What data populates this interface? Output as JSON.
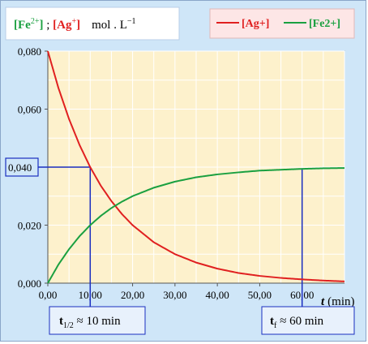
{
  "chart_data": {
    "type": "line",
    "title_parts": {
      "fe_symbol": "[Fe",
      "fe_charge": "2+",
      "fe_close": "]",
      "separator": " ; ",
      "ag_symbol": "[Ag",
      "ag_charge": "+",
      "ag_close": "]",
      "unit": "mol . L",
      "unit_exp": "−1"
    },
    "xlabel": "t",
    "xlabel_unit": "(min)",
    "xlim": [
      0,
      70
    ],
    "ylim": [
      0,
      0.08
    ],
    "x_ticks": [
      {
        "value": 0,
        "label": "0,00"
      },
      {
        "value": 10,
        "label": "10,00"
      },
      {
        "value": 20,
        "label": "20,00"
      },
      {
        "value": 30,
        "label": "30,00"
      },
      {
        "value": 40,
        "label": "40,00"
      },
      {
        "value": 50,
        "label": "50,00"
      },
      {
        "value": 60,
        "label": "60,00"
      }
    ],
    "y_ticks": [
      {
        "value": 0,
        "label": "0,000"
      },
      {
        "value": 0.02,
        "label": "0,020"
      },
      {
        "value": 0.04,
        "label": "0,040"
      },
      {
        "value": 0.06,
        "label": "0,060"
      },
      {
        "value": 0.08,
        "label": "0,080"
      }
    ],
    "grid": true,
    "legend_placement": "top-right",
    "series": [
      {
        "name": "[Ag+]",
        "color": "#e02020",
        "x": [
          0,
          2.5,
          5,
          7.5,
          10,
          12.5,
          15,
          17.5,
          20,
          25,
          30,
          35,
          40,
          45,
          50,
          55,
          60,
          65,
          70
        ],
        "y": [
          0.08,
          0.0673,
          0.0566,
          0.0476,
          0.04,
          0.0336,
          0.0283,
          0.0238,
          0.02,
          0.0141,
          0.01,
          0.0071,
          0.005,
          0.0035,
          0.0025,
          0.0018,
          0.0013,
          0.0009,
          0.0006
        ]
      },
      {
        "name": "[Fe2+]",
        "color": "#1aa040",
        "x": [
          0,
          2.5,
          5,
          7.5,
          10,
          12.5,
          15,
          17.5,
          20,
          25,
          30,
          35,
          40,
          45,
          50,
          55,
          60,
          65,
          70
        ],
        "y": [
          0,
          0.0064,
          0.0117,
          0.0162,
          0.02,
          0.0232,
          0.0259,
          0.0281,
          0.03,
          0.0329,
          0.035,
          0.0365,
          0.0375,
          0.0382,
          0.0388,
          0.0391,
          0.0394,
          0.0396,
          0.0397
        ]
      }
    ],
    "annotations": {
      "y_marker_label": "0,040",
      "half_life": {
        "t": "t",
        "sub": "1/2",
        "rest": " ≈ 10 min",
        "x": 10,
        "y": 0.04
      },
      "final_time": {
        "t": "t",
        "sub": "f",
        "rest": " ≈ 60 min",
        "x": 60,
        "y": 0.0394
      }
    },
    "colors": {
      "plot_bg": "#fdf1cc",
      "frame_bg": "#cfe6f8",
      "grid": "#ffffff",
      "marker": "#1a2ec0",
      "ag": "#e02020",
      "fe": "#1aa040"
    }
  }
}
